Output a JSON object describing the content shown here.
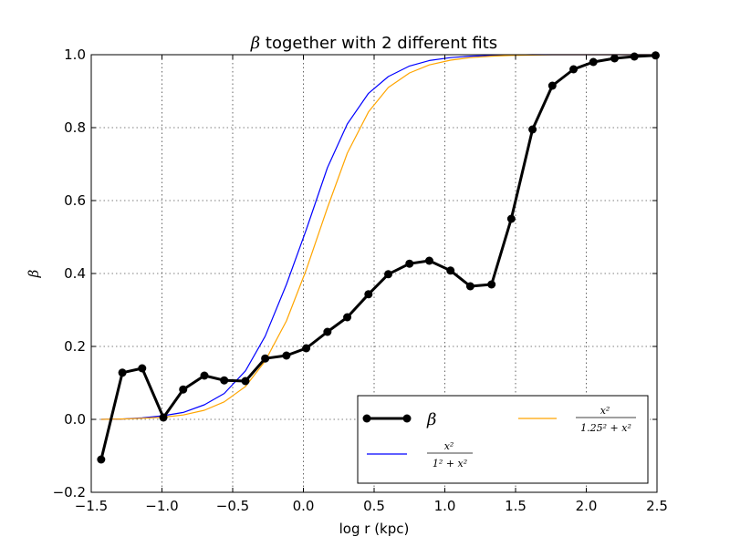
{
  "chart_data": {
    "type": "line",
    "title": "β together with 2 different fits",
    "title_symbol": "β",
    "title_text": " together with 2 different fits",
    "xlabel": "log r (kpc)",
    "ylabel": "β",
    "xlim": [
      -1.5,
      2.5
    ],
    "ylim": [
      -0.2,
      1.0
    ],
    "x_ticks": [
      -1.5,
      -1.0,
      -0.5,
      0.0,
      0.5,
      1.0,
      1.5,
      2.0,
      2.5
    ],
    "x_tick_labels": [
      "−1.5",
      "−1.0",
      "−0.5",
      "0.0",
      "0.5",
      "1.0",
      "1.5",
      "2.0",
      "2.5"
    ],
    "y_ticks": [
      -0.2,
      0.0,
      0.2,
      0.4,
      0.6,
      0.8,
      1.0
    ],
    "y_tick_labels": [
      "−0.2",
      "0.0",
      "0.2",
      "0.4",
      "0.6",
      "0.8",
      "1.0"
    ],
    "grid": true,
    "legend_position": "lower-right",
    "series": [
      {
        "name": "β",
        "color": "#000000",
        "marker": "circle",
        "x": [
          -1.43,
          -1.28,
          -1.14,
          -0.99,
          -0.85,
          -0.7,
          -0.56,
          -0.41,
          -0.27,
          -0.12,
          0.02,
          0.17,
          0.31,
          0.46,
          0.6,
          0.75,
          0.89,
          1.04,
          1.18,
          1.33,
          1.47,
          1.62,
          1.76,
          1.91,
          2.05,
          2.2,
          2.34,
          2.49
        ],
        "y": [
          -0.11,
          0.128,
          0.14,
          0.005,
          0.082,
          0.12,
          0.107,
          0.105,
          0.167,
          0.175,
          0.195,
          0.24,
          0.28,
          0.343,
          0.398,
          0.427,
          0.435,
          0.408,
          0.365,
          0.37,
          0.55,
          0.795,
          0.915,
          0.96,
          0.98,
          0.99,
          0.995,
          0.998
        ]
      },
      {
        "name": "x²/(1²+x²)",
        "color": "#0000ff",
        "marker": "none",
        "x": [
          -1.43,
          -1.28,
          -1.14,
          -0.99,
          -0.85,
          -0.7,
          -0.56,
          -0.41,
          -0.27,
          -0.12,
          0.02,
          0.17,
          0.31,
          0.46,
          0.6,
          0.75,
          0.89,
          1.04,
          1.18,
          1.33,
          1.47,
          1.62,
          1.76,
          1.91,
          2.05,
          2.2,
          2.34,
          2.49
        ],
        "y": [
          0.0,
          0.001,
          0.004,
          0.01,
          0.019,
          0.04,
          0.071,
          0.133,
          0.228,
          0.37,
          0.52,
          0.69,
          0.81,
          0.894,
          0.94,
          0.969,
          0.984,
          0.992,
          0.996,
          0.998,
          0.999,
          1.0,
          1.0,
          1.0,
          1.0,
          1.0,
          1.0,
          1.0
        ]
      },
      {
        "name": "x²/(1.25²+x²)",
        "color": "#ffa500",
        "marker": "none",
        "x": [
          -1.43,
          -1.28,
          -1.14,
          -0.99,
          -0.85,
          -0.7,
          -0.56,
          -0.41,
          -0.27,
          -0.12,
          0.02,
          0.17,
          0.31,
          0.46,
          0.6,
          0.75,
          0.89,
          1.04,
          1.18,
          1.33,
          1.47,
          1.62,
          1.76,
          1.91,
          2.05,
          2.2,
          2.34,
          2.49
        ],
        "y": [
          0.0,
          0.001,
          0.003,
          0.006,
          0.012,
          0.025,
          0.048,
          0.09,
          0.16,
          0.27,
          0.41,
          0.58,
          0.73,
          0.843,
          0.91,
          0.95,
          0.972,
          0.985,
          0.992,
          0.996,
          0.998,
          0.999,
          1.0,
          1.0,
          1.0,
          1.0,
          1.0,
          1.0
        ]
      }
    ],
    "legend": {
      "beta_label": "β",
      "fit1_num": "x²",
      "fit1_den": "1² + x²",
      "fit2_num": "x²",
      "fit2_den": "1.25² + x²"
    }
  }
}
